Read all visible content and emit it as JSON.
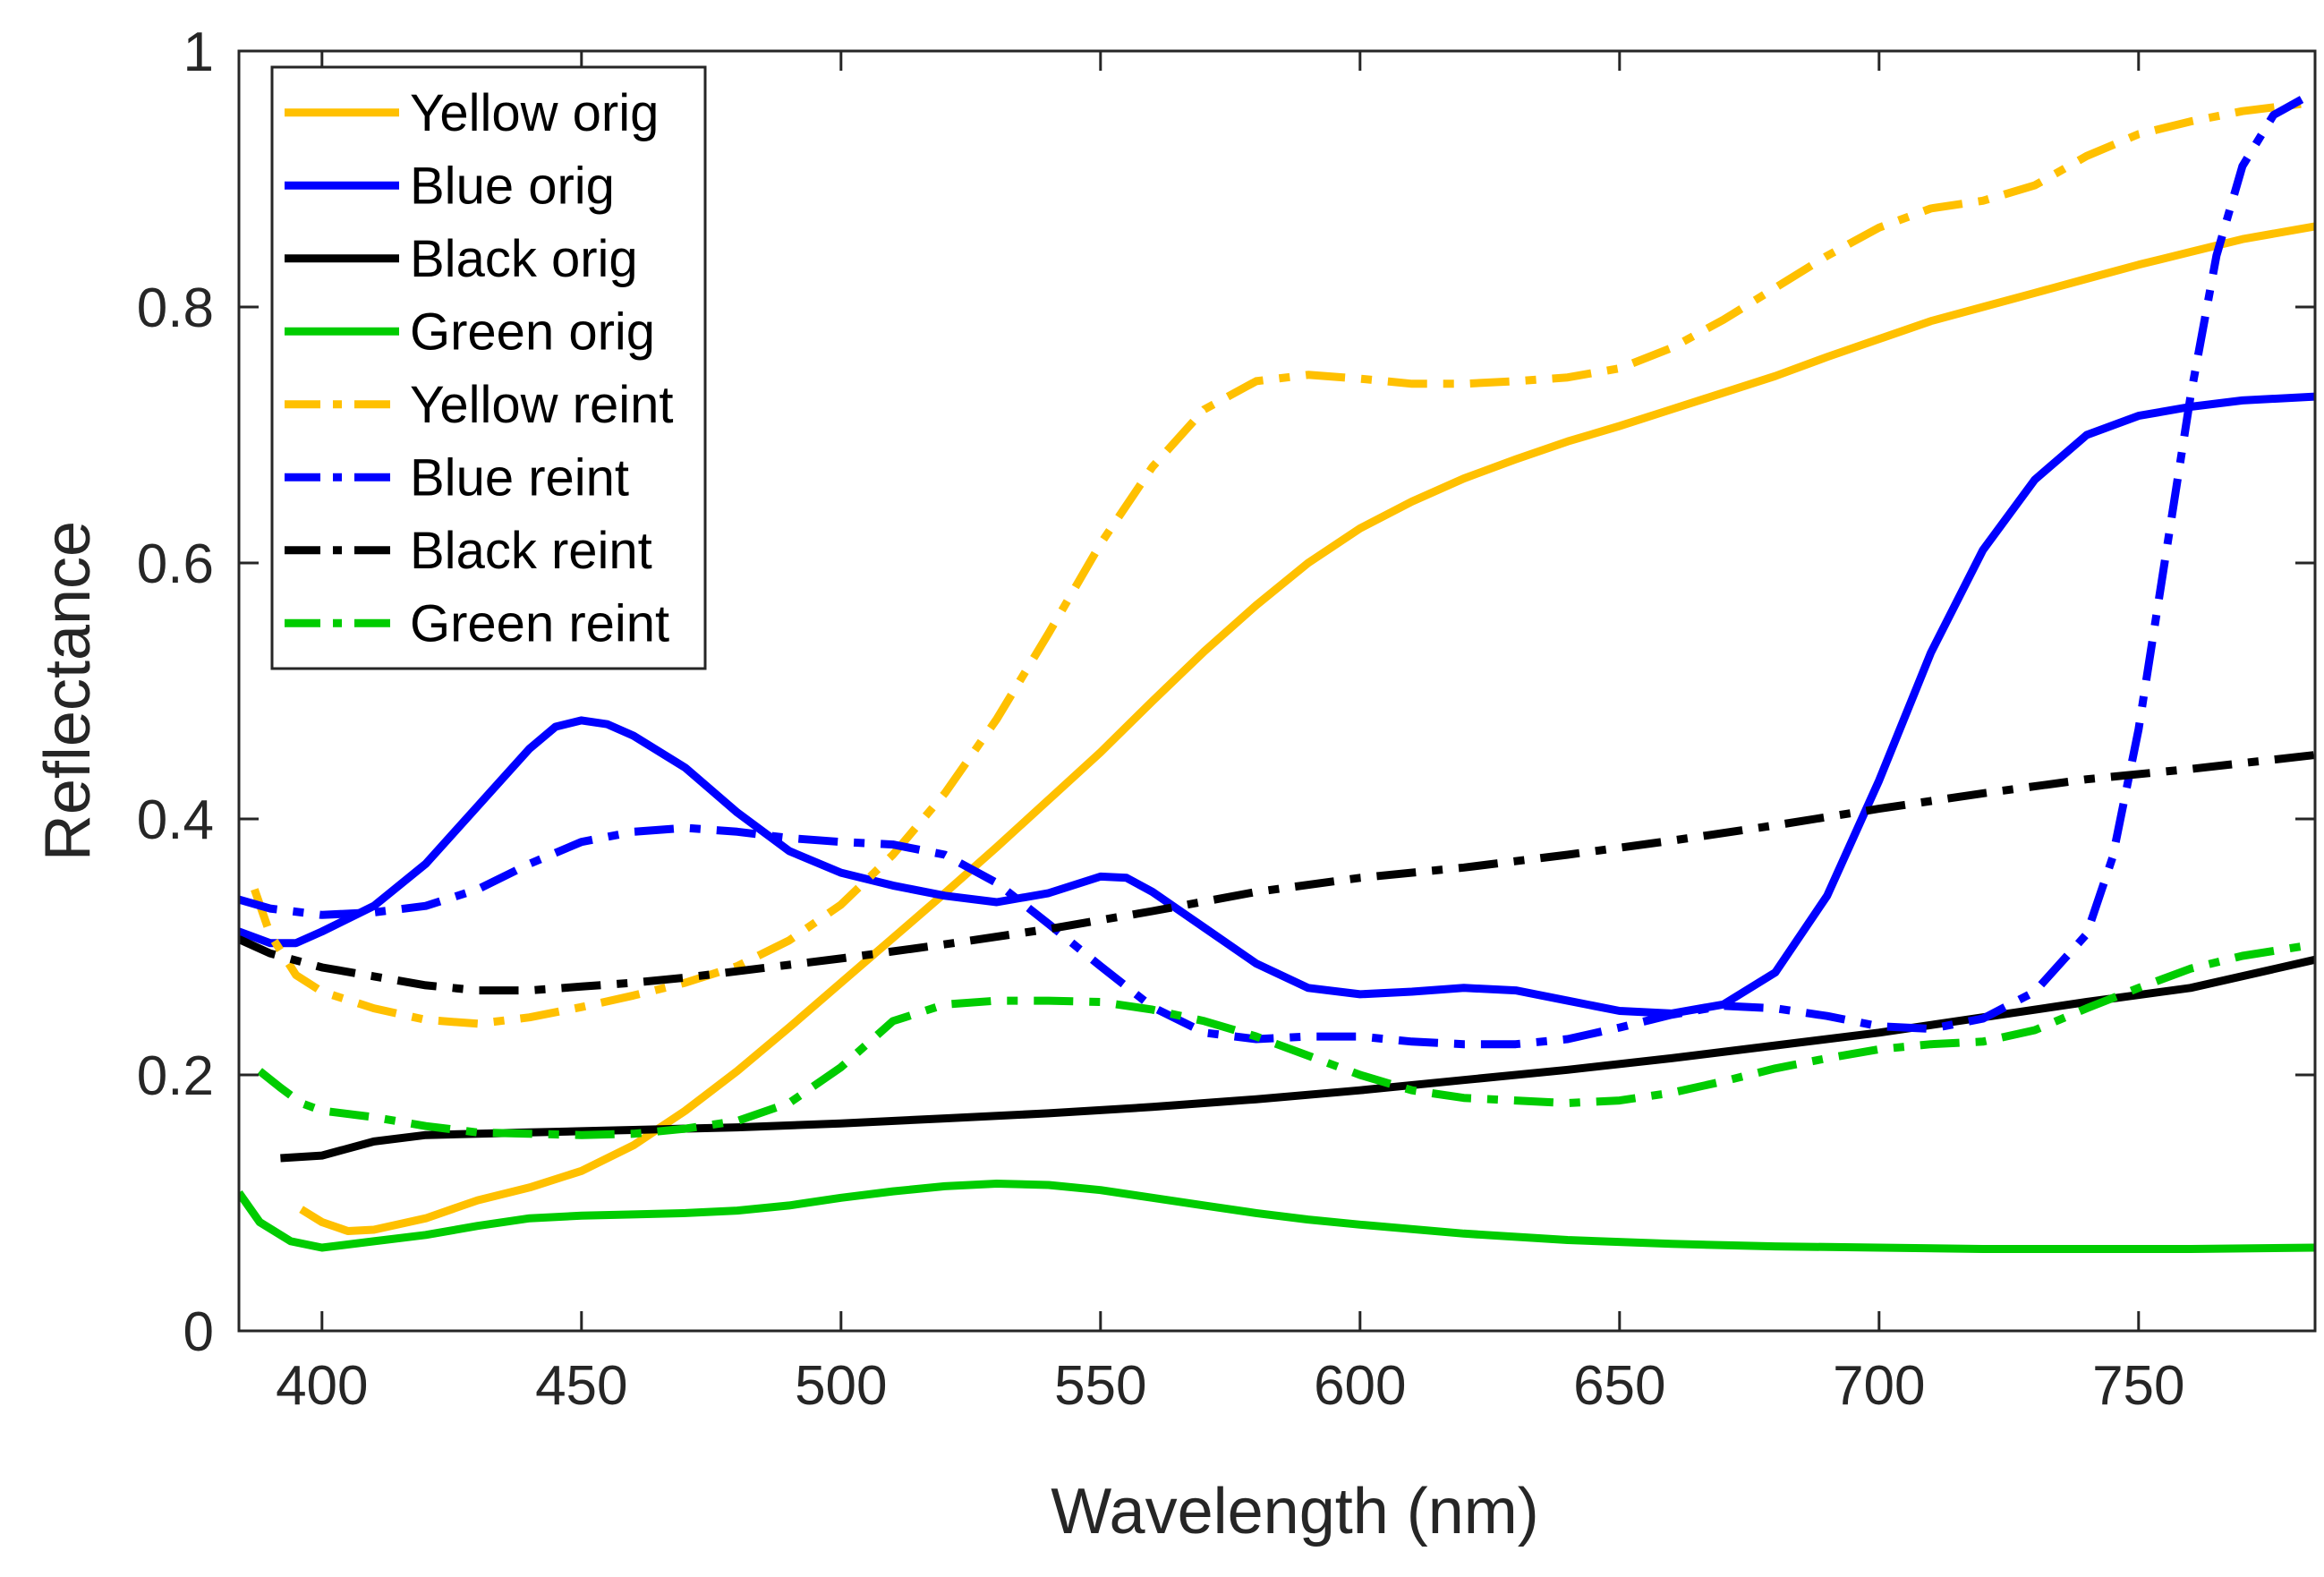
{
  "chart_data": {
    "type": "line",
    "title": "",
    "xlabel": "Wavelength (nm)",
    "ylabel": "Reflectance",
    "xlim": [
      384,
      784
    ],
    "ylim": [
      0,
      1
    ],
    "xticks": [
      400,
      450,
      500,
      550,
      600,
      650,
      700,
      750
    ],
    "yticks": [
      0,
      0.2,
      0.4,
      0.6,
      0.8,
      1
    ],
    "ytick_labels": [
      "0",
      "0.2",
      "0.4",
      "0.6",
      "0.8",
      "1"
    ],
    "legend_position": "top-left",
    "grid": false,
    "series": [
      {
        "name": "Yellow orig",
        "color": "#FFC000",
        "style": "solid",
        "points": [
          [
            396,
            0.095
          ],
          [
            400,
            0.085
          ],
          [
            405,
            0.078
          ],
          [
            410,
            0.079
          ],
          [
            420,
            0.088
          ],
          [
            430,
            0.102
          ],
          [
            440,
            0.112
          ],
          [
            450,
            0.125
          ],
          [
            460,
            0.145
          ],
          [
            470,
            0.172
          ],
          [
            480,
            0.203
          ],
          [
            490,
            0.237
          ],
          [
            500,
            0.272
          ],
          [
            510,
            0.307
          ],
          [
            520,
            0.342
          ],
          [
            530,
            0.378
          ],
          [
            540,
            0.415
          ],
          [
            550,
            0.452
          ],
          [
            560,
            0.492
          ],
          [
            570,
            0.531
          ],
          [
            580,
            0.567
          ],
          [
            590,
            0.6
          ],
          [
            600,
            0.627
          ],
          [
            610,
            0.648
          ],
          [
            620,
            0.666
          ],
          [
            630,
            0.681
          ],
          [
            640,
            0.695
          ],
          [
            650,
            0.707
          ],
          [
            660,
            0.72
          ],
          [
            670,
            0.733
          ],
          [
            680,
            0.746
          ],
          [
            690,
            0.761
          ],
          [
            700,
            0.775
          ],
          [
            710,
            0.789
          ],
          [
            720,
            0.8
          ],
          [
            730,
            0.811
          ],
          [
            740,
            0.822
          ],
          [
            750,
            0.833
          ],
          [
            760,
            0.843
          ],
          [
            770,
            0.853
          ],
          [
            784,
            0.863
          ]
        ]
      },
      {
        "name": "Blue orig",
        "color": "#0000FF",
        "style": "solid",
        "points": [
          [
            384,
            0.312
          ],
          [
            390,
            0.303
          ],
          [
            395,
            0.303
          ],
          [
            400,
            0.312
          ],
          [
            410,
            0.332
          ],
          [
            420,
            0.365
          ],
          [
            430,
            0.41
          ],
          [
            440,
            0.455
          ],
          [
            445,
            0.472
          ],
          [
            450,
            0.477
          ],
          [
            455,
            0.474
          ],
          [
            460,
            0.465
          ],
          [
            470,
            0.44
          ],
          [
            480,
            0.405
          ],
          [
            490,
            0.375
          ],
          [
            500,
            0.358
          ],
          [
            510,
            0.348
          ],
          [
            520,
            0.34
          ],
          [
            530,
            0.335
          ],
          [
            540,
            0.342
          ],
          [
            550,
            0.355
          ],
          [
            555,
            0.354
          ],
          [
            560,
            0.343
          ],
          [
            570,
            0.315
          ],
          [
            580,
            0.287
          ],
          [
            590,
            0.268
          ],
          [
            600,
            0.263
          ],
          [
            610,
            0.265
          ],
          [
            620,
            0.268
          ],
          [
            630,
            0.266
          ],
          [
            640,
            0.258
          ],
          [
            650,
            0.25
          ],
          [
            660,
            0.248
          ],
          [
            670,
            0.255
          ],
          [
            680,
            0.28
          ],
          [
            690,
            0.34
          ],
          [
            700,
            0.43
          ],
          [
            710,
            0.53
          ],
          [
            720,
            0.61
          ],
          [
            730,
            0.665
          ],
          [
            740,
            0.7
          ],
          [
            750,
            0.715
          ],
          [
            760,
            0.722
          ],
          [
            770,
            0.727
          ],
          [
            784,
            0.73
          ]
        ]
      },
      {
        "name": "Black orig",
        "color": "#000000",
        "style": "solid",
        "points": [
          [
            392,
            0.135
          ],
          [
            400,
            0.137
          ],
          [
            410,
            0.148
          ],
          [
            420,
            0.153
          ],
          [
            430,
            0.154
          ],
          [
            440,
            0.155
          ],
          [
            450,
            0.156
          ],
          [
            460,
            0.157
          ],
          [
            480,
            0.159
          ],
          [
            500,
            0.162
          ],
          [
            520,
            0.166
          ],
          [
            540,
            0.17
          ],
          [
            560,
            0.175
          ],
          [
            580,
            0.181
          ],
          [
            600,
            0.188
          ],
          [
            620,
            0.196
          ],
          [
            640,
            0.204
          ],
          [
            660,
            0.213
          ],
          [
            680,
            0.223
          ],
          [
            700,
            0.233
          ],
          [
            720,
            0.245
          ],
          [
            740,
            0.257
          ],
          [
            760,
            0.268
          ],
          [
            784,
            0.29
          ]
        ]
      },
      {
        "name": "Green orig",
        "color": "#00CC00",
        "style": "solid",
        "points": [
          [
            384,
            0.108
          ],
          [
            388,
            0.085
          ],
          [
            394,
            0.07
          ],
          [
            400,
            0.065
          ],
          [
            410,
            0.07
          ],
          [
            420,
            0.075
          ],
          [
            430,
            0.082
          ],
          [
            440,
            0.088
          ],
          [
            450,
            0.09
          ],
          [
            460,
            0.091
          ],
          [
            470,
            0.092
          ],
          [
            480,
            0.094
          ],
          [
            490,
            0.098
          ],
          [
            500,
            0.104
          ],
          [
            510,
            0.109
          ],
          [
            520,
            0.113
          ],
          [
            530,
            0.115
          ],
          [
            540,
            0.114
          ],
          [
            550,
            0.11
          ],
          [
            560,
            0.104
          ],
          [
            570,
            0.098
          ],
          [
            580,
            0.092
          ],
          [
            590,
            0.087
          ],
          [
            600,
            0.083
          ],
          [
            620,
            0.076
          ],
          [
            640,
            0.071
          ],
          [
            660,
            0.068
          ],
          [
            680,
            0.066
          ],
          [
            700,
            0.065
          ],
          [
            720,
            0.064
          ],
          [
            740,
            0.064
          ],
          [
            760,
            0.064
          ],
          [
            784,
            0.065
          ]
        ]
      },
      {
        "name": "Yellow reint",
        "color": "#FFC000",
        "style": "dashdot",
        "points": [
          [
            387,
            0.345
          ],
          [
            390,
            0.31
          ],
          [
            395,
            0.278
          ],
          [
            400,
            0.265
          ],
          [
            410,
            0.252
          ],
          [
            420,
            0.243
          ],
          [
            430,
            0.24
          ],
          [
            440,
            0.245
          ],
          [
            450,
            0.253
          ],
          [
            460,
            0.262
          ],
          [
            470,
            0.272
          ],
          [
            480,
            0.285
          ],
          [
            490,
            0.305
          ],
          [
            500,
            0.333
          ],
          [
            510,
            0.372
          ],
          [
            520,
            0.42
          ],
          [
            530,
            0.478
          ],
          [
            540,
            0.545
          ],
          [
            550,
            0.615
          ],
          [
            560,
            0.675
          ],
          [
            570,
            0.72
          ],
          [
            580,
            0.742
          ],
          [
            590,
            0.747
          ],
          [
            600,
            0.744
          ],
          [
            610,
            0.74
          ],
          [
            620,
            0.74
          ],
          [
            630,
            0.742
          ],
          [
            640,
            0.745
          ],
          [
            650,
            0.752
          ],
          [
            660,
            0.768
          ],
          [
            670,
            0.79
          ],
          [
            680,
            0.815
          ],
          [
            690,
            0.84
          ],
          [
            700,
            0.862
          ],
          [
            710,
            0.877
          ],
          [
            720,
            0.883
          ],
          [
            730,
            0.895
          ],
          [
            740,
            0.918
          ],
          [
            750,
            0.935
          ],
          [
            760,
            0.945
          ],
          [
            770,
            0.953
          ],
          [
            784,
            0.96
          ]
        ]
      },
      {
        "name": "Blue reint",
        "color": "#0000FF",
        "style": "dashdot",
        "points": [
          [
            384,
            0.337
          ],
          [
            390,
            0.33
          ],
          [
            400,
            0.325
          ],
          [
            410,
            0.327
          ],
          [
            420,
            0.332
          ],
          [
            430,
            0.345
          ],
          [
            440,
            0.365
          ],
          [
            450,
            0.382
          ],
          [
            460,
            0.39
          ],
          [
            470,
            0.393
          ],
          [
            480,
            0.39
          ],
          [
            490,
            0.385
          ],
          [
            500,
            0.382
          ],
          [
            510,
            0.38
          ],
          [
            520,
            0.372
          ],
          [
            530,
            0.35
          ],
          [
            540,
            0.318
          ],
          [
            550,
            0.285
          ],
          [
            560,
            0.253
          ],
          [
            570,
            0.233
          ],
          [
            580,
            0.228
          ],
          [
            590,
            0.23
          ],
          [
            600,
            0.23
          ],
          [
            610,
            0.226
          ],
          [
            620,
            0.224
          ],
          [
            630,
            0.224
          ],
          [
            640,
            0.228
          ],
          [
            650,
            0.237
          ],
          [
            660,
            0.247
          ],
          [
            670,
            0.254
          ],
          [
            680,
            0.252
          ],
          [
            690,
            0.246
          ],
          [
            700,
            0.238
          ],
          [
            710,
            0.236
          ],
          [
            720,
            0.244
          ],
          [
            730,
            0.265
          ],
          [
            740,
            0.31
          ],
          [
            745,
            0.37
          ],
          [
            750,
            0.47
          ],
          [
            755,
            0.6
          ],
          [
            760,
            0.73
          ],
          [
            765,
            0.84
          ],
          [
            770,
            0.91
          ],
          [
            776,
            0.95
          ],
          [
            784,
            0.968
          ]
        ]
      },
      {
        "name": "Black reint",
        "color": "#000000",
        "style": "dashdot",
        "points": [
          [
            384,
            0.306
          ],
          [
            390,
            0.295
          ],
          [
            400,
            0.284
          ],
          [
            410,
            0.277
          ],
          [
            420,
            0.27
          ],
          [
            430,
            0.266
          ],
          [
            440,
            0.266
          ],
          [
            450,
            0.269
          ],
          [
            460,
            0.272
          ],
          [
            470,
            0.276
          ],
          [
            480,
            0.281
          ],
          [
            490,
            0.286
          ],
          [
            500,
            0.291
          ],
          [
            520,
            0.302
          ],
          [
            540,
            0.314
          ],
          [
            560,
            0.328
          ],
          [
            580,
            0.343
          ],
          [
            600,
            0.354
          ],
          [
            620,
            0.362
          ],
          [
            640,
            0.372
          ],
          [
            660,
            0.383
          ],
          [
            680,
            0.395
          ],
          [
            700,
            0.408
          ],
          [
            720,
            0.42
          ],
          [
            740,
            0.431
          ],
          [
            760,
            0.439
          ],
          [
            784,
            0.45
          ]
        ]
      },
      {
        "name": "Green reint",
        "color": "#00CC00",
        "style": "dashdot",
        "points": [
          [
            388,
            0.203
          ],
          [
            392,
            0.19
          ],
          [
            396,
            0.178
          ],
          [
            400,
            0.172
          ],
          [
            410,
            0.167
          ],
          [
            420,
            0.16
          ],
          [
            430,
            0.155
          ],
          [
            440,
            0.154
          ],
          [
            450,
            0.153
          ],
          [
            460,
            0.154
          ],
          [
            470,
            0.158
          ],
          [
            480,
            0.164
          ],
          [
            490,
            0.178
          ],
          [
            500,
            0.206
          ],
          [
            510,
            0.242
          ],
          [
            520,
            0.255
          ],
          [
            530,
            0.258
          ],
          [
            540,
            0.258
          ],
          [
            550,
            0.257
          ],
          [
            560,
            0.251
          ],
          [
            570,
            0.242
          ],
          [
            580,
            0.23
          ],
          [
            590,
            0.215
          ],
          [
            600,
            0.2
          ],
          [
            610,
            0.188
          ],
          [
            620,
            0.182
          ],
          [
            630,
            0.18
          ],
          [
            640,
            0.178
          ],
          [
            650,
            0.18
          ],
          [
            660,
            0.186
          ],
          [
            670,
            0.195
          ],
          [
            680,
            0.205
          ],
          [
            690,
            0.213
          ],
          [
            700,
            0.22
          ],
          [
            710,
            0.224
          ],
          [
            720,
            0.226
          ],
          [
            730,
            0.235
          ],
          [
            740,
            0.252
          ],
          [
            750,
            0.268
          ],
          [
            760,
            0.283
          ],
          [
            770,
            0.293
          ],
          [
            784,
            0.302
          ]
        ]
      }
    ]
  }
}
